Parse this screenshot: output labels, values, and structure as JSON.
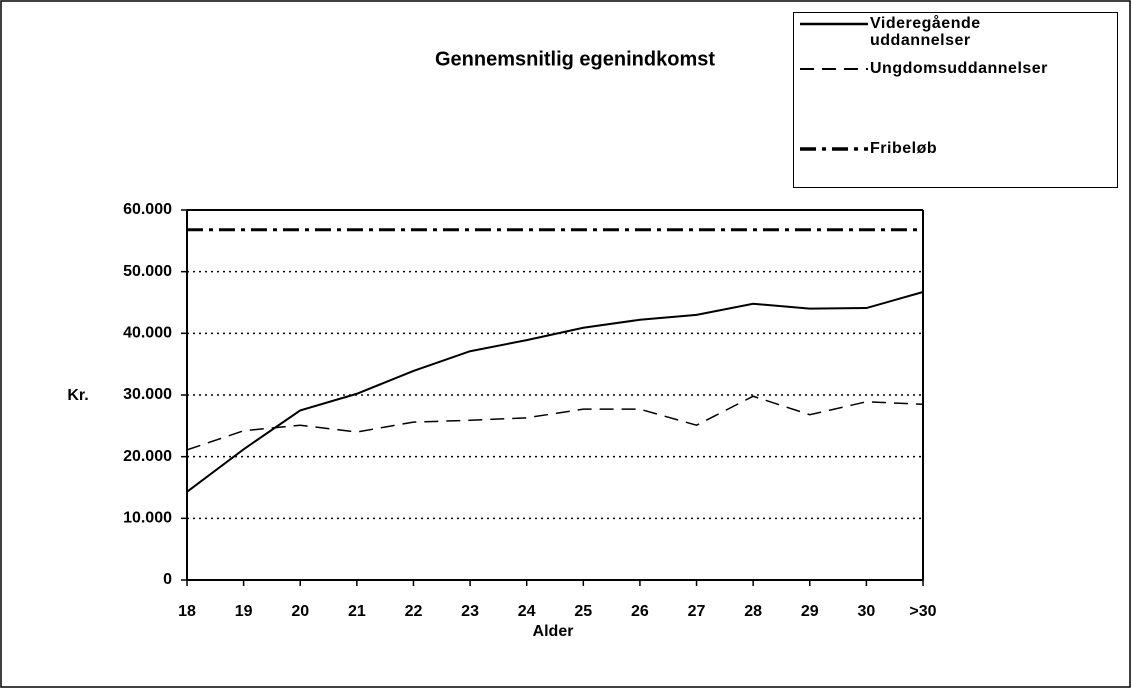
{
  "chart_data": {
    "type": "line",
    "title": "Gennemsnitlig egenindkomst",
    "xlabel": "Alder",
    "ylabel": "Kr.",
    "categories": [
      "18",
      "19",
      "20",
      "21",
      "22",
      "23",
      "24",
      "25",
      "26",
      "27",
      "28",
      "29",
      "30",
      ">30"
    ],
    "series": [
      {
        "name": "Videregående uddannelser",
        "color": "#000000",
        "dash": "solid",
        "values": [
          14300,
          21200,
          27500,
          30200,
          33900,
          37100,
          38900,
          40900,
          42200,
          43000,
          44800,
          44000,
          44100,
          46700
        ]
      },
      {
        "name": "Ungdomsuddannelser",
        "color": "#000000",
        "dash": "dashed",
        "values": [
          21100,
          24200,
          25100,
          24000,
          25600,
          25900,
          26300,
          27700,
          27700,
          25100,
          29800,
          26800,
          28900,
          28500
        ]
      },
      {
        "name": "Fribeløb",
        "color": "#000000",
        "dash": "dashdot",
        "values": [
          56800,
          56800,
          56800,
          56800,
          56800,
          56800,
          56800,
          56800,
          56800,
          56800,
          56800,
          56800,
          56800,
          56800
        ]
      }
    ],
    "ylim": [
      0,
      60000
    ],
    "yticks": [
      0,
      {
        "value": 10000,
        "label": "10.000"
      },
      {
        "value": 20000,
        "label": "20.000"
      },
      {
        "value": 30000,
        "label": "30.000"
      },
      {
        "value": 40000,
        "label": "40.000"
      },
      {
        "value": 50000,
        "label": "50.000"
      },
      {
        "value": 60000,
        "label": "60.000"
      }
    ],
    "grid": true,
    "legend": "upper right"
  }
}
